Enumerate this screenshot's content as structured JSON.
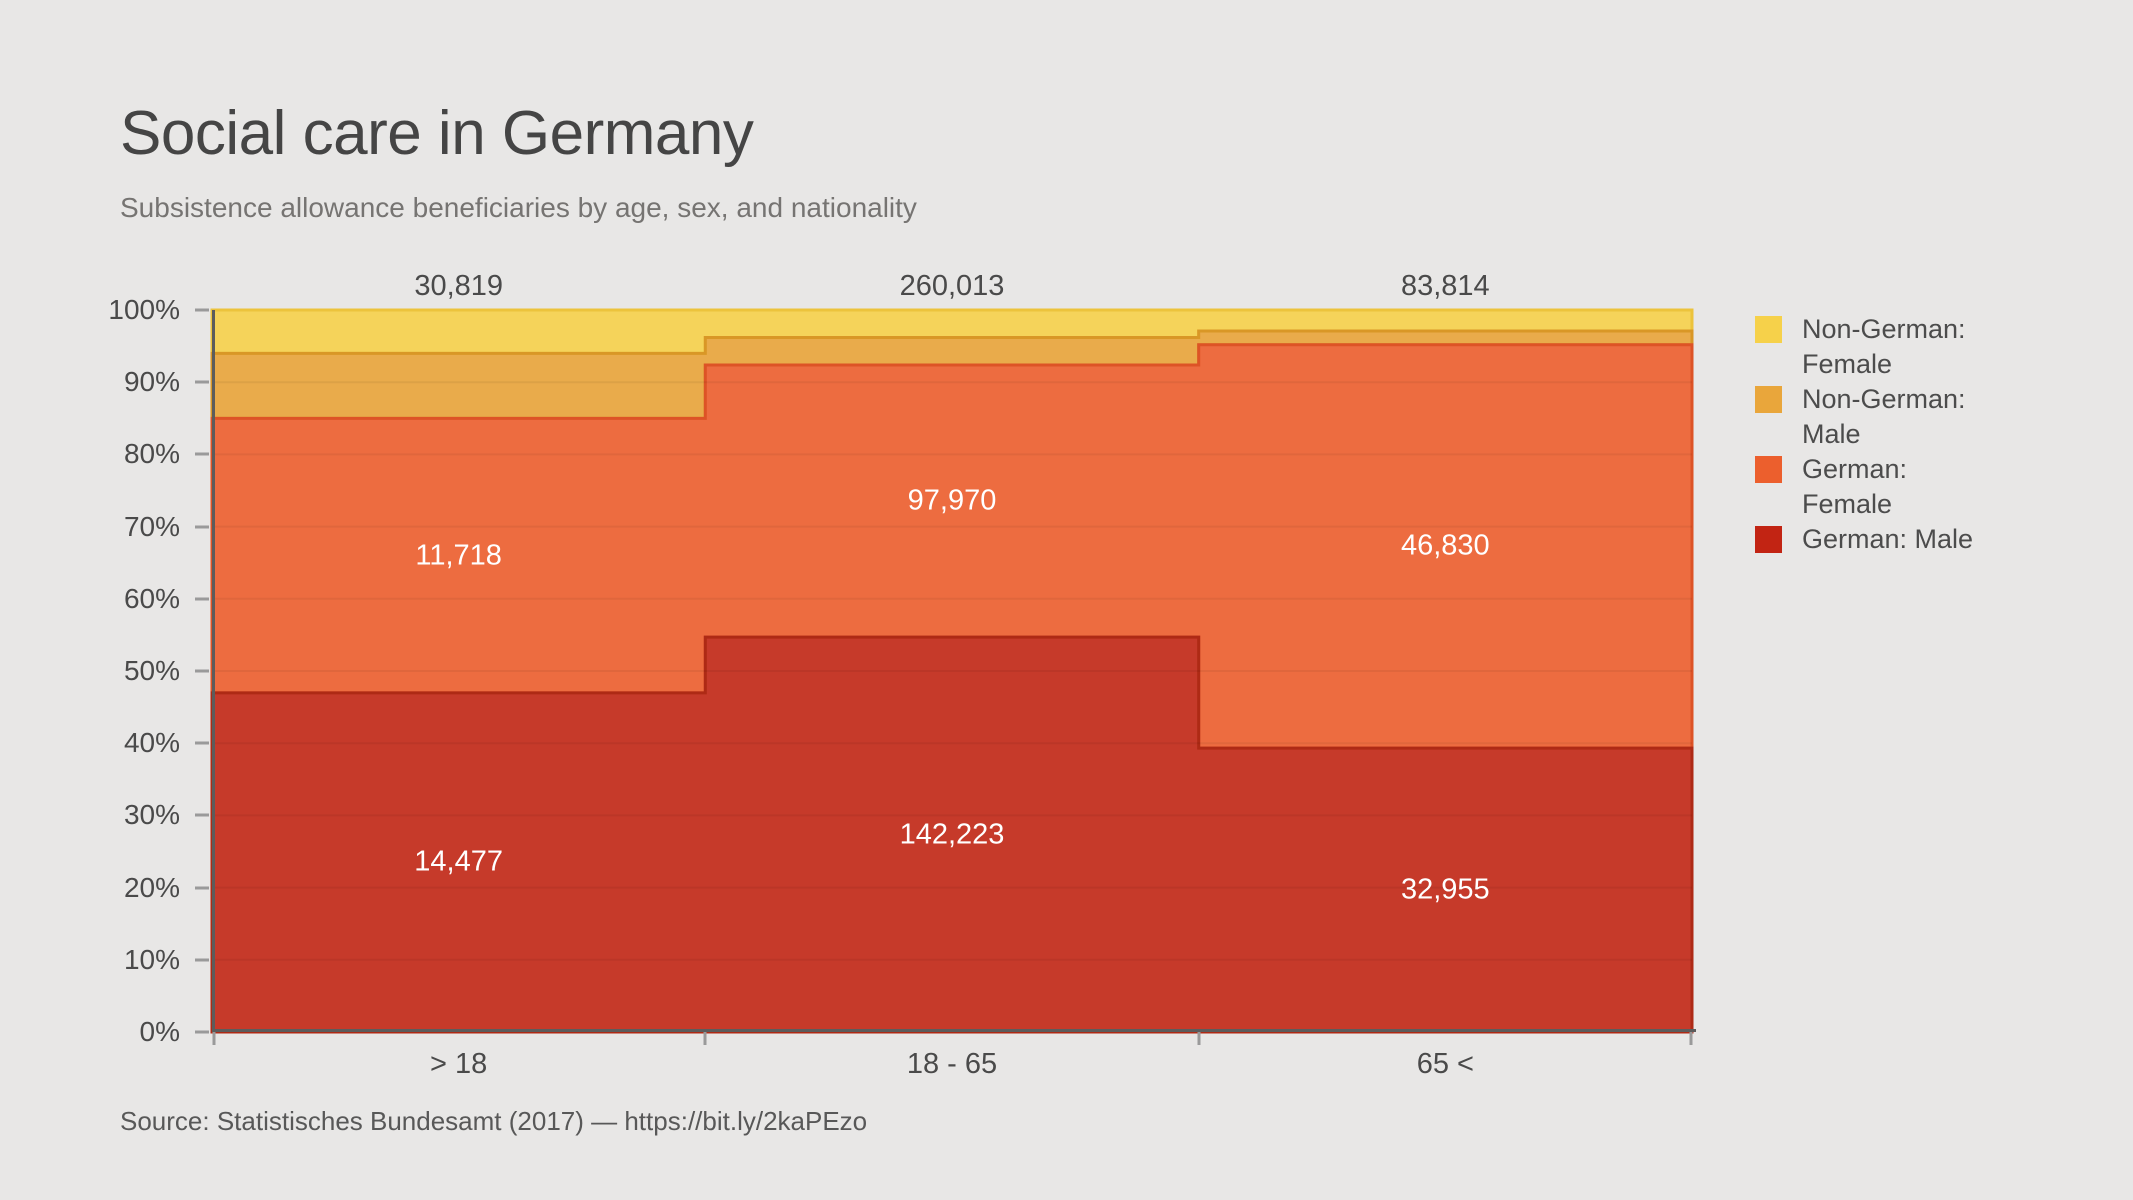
{
  "title": "Social care in Germany",
  "subtitle": "Subsistence allowance beneficiaries by age, sex, and nationality",
  "source": "Source: Statistisches Bundesamt (2017) —  https://bit.ly/2kaPEzo",
  "colors": {
    "background": "#e8e7e6",
    "axis_line": "#5c5c5c",
    "tick_mark": "#9a9a9a",
    "title_text": "#454545",
    "subtitle_text": "#767472",
    "label_text": "#4a4a4a",
    "value_label_text": "#ffffff",
    "gridline": "rgba(0,0,0,0.055)"
  },
  "chart_data": {
    "type": "area",
    "variant": "stepped-100pct-stacked",
    "title": "Social care in Germany",
    "subtitle": "Subsistence allowance beneficiaries by age, sex, and nationality",
    "categories": [
      "> 18",
      "18 - 65",
      "65 <"
    ],
    "column_totals": [
      "30,819",
      "260,013",
      "83,814"
    ],
    "column_totals_values": [
      30819,
      260013,
      83814
    ],
    "ylabel": "",
    "xlabel": "",
    "ylim": [
      0,
      100
    ],
    "yticks": [
      "0%",
      "10%",
      "20%",
      "30%",
      "40%",
      "50%",
      "60%",
      "70%",
      "80%",
      "90%",
      "100%"
    ],
    "grid": true,
    "legend_position": "right",
    "series": [
      {
        "name": "German: Male",
        "legend_color": "#c22413",
        "fill": "#c63a2a",
        "stroke": "#ae2a15",
        "values": [
          14477,
          142223,
          32955
        ],
        "labels": [
          "14,477",
          "142,223",
          "32,955"
        ],
        "pct": [
          46.97,
          54.7,
          39.32
        ]
      },
      {
        "name": "German: Female",
        "legend_color": "#ec5f2d",
        "fill": "#ed6c40",
        "stroke": "#dd5326",
        "values": [
          11718,
          97970,
          46830
        ],
        "labels": [
          "11,718",
          "97,970",
          "46,830"
        ],
        "pct": [
          38.02,
          37.68,
          55.87
        ]
      },
      {
        "name": "Non-German: Male",
        "legend_color": "#e9a63b",
        "fill": "#e9ab4b",
        "stroke": "#d99726",
        "values": null,
        "labels": null,
        "pct": [
          9.0,
          3.81,
          1.9
        ]
      },
      {
        "name": "Non-German: Female",
        "legend_color": "#f6d14a",
        "fill": "#f5d35a",
        "stroke": "#ecc33c",
        "values": null,
        "labels": null,
        "pct": [
          6.01,
          3.81,
          2.91
        ]
      }
    ],
    "legend_order_top_to_bottom": [
      "Non-German: Female",
      "Non-German: Male",
      "German: Female",
      "German: Male"
    ]
  }
}
